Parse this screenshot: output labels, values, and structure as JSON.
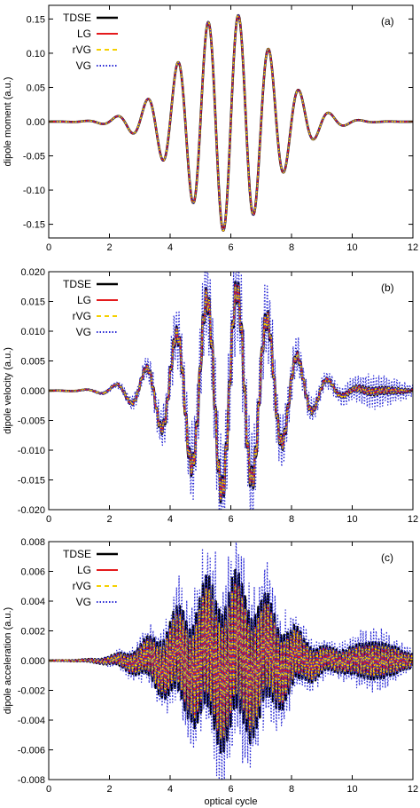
{
  "chart_data": [
    {
      "type": "line",
      "panel_label": "(a)",
      "ylabel": "dipole moment (a.u.)",
      "xlabel": "",
      "xlim": [
        0,
        12
      ],
      "ylim": [
        -0.17,
        0.17
      ],
      "xticks": [
        0,
        2,
        4,
        6,
        8,
        10,
        12
      ],
      "xtick_labels": [
        "0",
        "2",
        "4",
        "6",
        "8",
        "10",
        "12"
      ],
      "yticks": [
        -0.15,
        -0.1,
        -0.05,
        0.0,
        0.05,
        0.1,
        0.15
      ],
      "ytick_labels": [
        "-0.15",
        "-0.10",
        "-0.05",
        "0.00",
        "0.05",
        "0.10",
        "0.15"
      ],
      "legend": [
        "TDSE",
        "LG",
        "rVG",
        "VG"
      ],
      "legend_position": "top-left",
      "model": {
        "amplitude": 0.16,
        "center": 5.9,
        "width": 2.1,
        "noise": 0.0,
        "vg_noise": 0.003
      },
      "series": [
        {
          "name": "TDSE",
          "color": "#000000",
          "style": "solid",
          "width": 2.6
        },
        {
          "name": "LG",
          "color": "#e41a1c",
          "style": "solid",
          "width": 1.8
        },
        {
          "name": "rVG",
          "color": "#f5d000",
          "style": "dashed",
          "width": 1.6
        },
        {
          "name": "VG",
          "color": "#2c2cd6",
          "style": "dotted",
          "width": 1.2
        }
      ]
    },
    {
      "type": "line",
      "panel_label": "(b)",
      "ylabel": "dipole velocity (a.u.)",
      "xlabel": "",
      "xlim": [
        0,
        12
      ],
      "ylim": [
        -0.02,
        0.02
      ],
      "xticks": [
        0,
        2,
        4,
        6,
        8,
        10,
        12
      ],
      "xtick_labels": [
        "0",
        "2",
        "4",
        "6",
        "8",
        "10",
        "12"
      ],
      "yticks": [
        -0.02,
        -0.015,
        -0.01,
        -0.005,
        0.0,
        0.005,
        0.01,
        0.015,
        0.02
      ],
      "ytick_labels": [
        "-0.020",
        "-0.015",
        "-0.010",
        "-0.005",
        "0.000",
        "0.005",
        "0.010",
        "0.015",
        "0.020"
      ],
      "legend": [
        "TDSE",
        "LG",
        "rVG",
        "VG"
      ],
      "legend_position": "top-left",
      "model": {
        "amplitude": 0.017,
        "center": 5.9,
        "width": 2.2,
        "noise": 0.0025,
        "vg_noise": 0.012
      },
      "series": [
        {
          "name": "TDSE",
          "color": "#000000",
          "style": "solid",
          "width": 2.6
        },
        {
          "name": "LG",
          "color": "#e41a1c",
          "style": "solid",
          "width": 1.8
        },
        {
          "name": "rVG",
          "color": "#f5d000",
          "style": "dashed",
          "width": 1.6
        },
        {
          "name": "VG",
          "color": "#2c2cd6",
          "style": "dotted",
          "width": 1.2
        }
      ]
    },
    {
      "type": "line",
      "panel_label": "(c)",
      "ylabel": "dipole acceleration (a.u.)",
      "xlabel": "optical cycle",
      "xlim": [
        0,
        12
      ],
      "ylim": [
        -0.008,
        0.008
      ],
      "xticks": [
        0,
        2,
        4,
        6,
        8,
        10,
        12
      ],
      "xtick_labels": [
        "0",
        "2",
        "4",
        "6",
        "8",
        "10",
        "12"
      ],
      "yticks": [
        -0.008,
        -0.006,
        -0.004,
        -0.002,
        0.0,
        0.002,
        0.004,
        0.006,
        0.008
      ],
      "ytick_labels": [
        "-0.008",
        "-0.006",
        "-0.004",
        "-0.002",
        "0.000",
        "0.002",
        "0.004",
        "0.006",
        "0.008"
      ],
      "legend": [
        "TDSE",
        "LG",
        "rVG",
        "VG"
      ],
      "legend_position": "top-left",
      "model": {
        "amplitude": 0.0015,
        "center": 5.9,
        "width": 2.3,
        "noise": 0.0048,
        "vg_noise": 0.009
      },
      "series": [
        {
          "name": "TDSE",
          "color": "#000000",
          "style": "solid",
          "width": 2.6
        },
        {
          "name": "LG",
          "color": "#e41a1c",
          "style": "solid",
          "width": 1.8
        },
        {
          "name": "rVG",
          "color": "#f5d000",
          "style": "dashed",
          "width": 1.6
        },
        {
          "name": "VG",
          "color": "#2c2cd6",
          "style": "dotted",
          "width": 1.2
        }
      ]
    }
  ]
}
